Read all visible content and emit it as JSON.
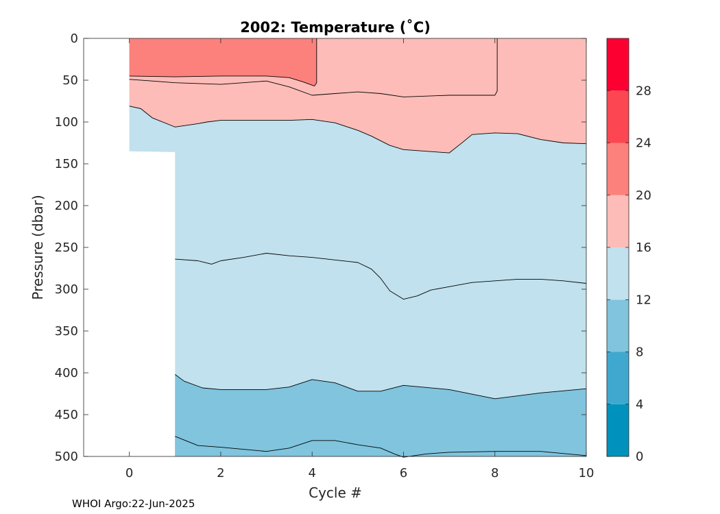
{
  "chart_data": {
    "type": "heatmap",
    "title": "2002:  Temperature (˚C)",
    "xlabel": "Cycle #",
    "ylabel": "Pressure (dbar)",
    "xlim": [
      -1,
      10
    ],
    "ylim": [
      0,
      500
    ],
    "y_reversed": true,
    "xticks": [
      0,
      2,
      4,
      6,
      8,
      10
    ],
    "yticks": [
      0,
      50,
      100,
      150,
      200,
      250,
      300,
      350,
      400,
      450,
      500
    ],
    "colorbar": {
      "limits": [
        0,
        32
      ],
      "ticks": [
        0,
        4,
        8,
        12,
        16,
        20,
        24,
        28
      ],
      "bands": [
        {
          "from": 0,
          "to": 4,
          "color": "#0092bd"
        },
        {
          "from": 4,
          "to": 8,
          "color": "#40a8cf"
        },
        {
          "from": 8,
          "to": 12,
          "color": "#80c4de"
        },
        {
          "from": 12,
          "to": 16,
          "color": "#c0e1ed"
        },
        {
          "from": 16,
          "to": 20,
          "color": "#fdbcb7"
        },
        {
          "from": 20,
          "to": 24,
          "color": "#fc817c"
        },
        {
          "from": 24,
          "to": 28,
          "color": "#fc4651"
        },
        {
          "from": 28,
          "to": 32,
          "color": "#fc0032"
        }
      ]
    },
    "regions": [
      {
        "level": "12-16",
        "color": "#c0e1ed",
        "polygon": [
          [
            0,
            0
          ],
          [
            10,
            0
          ],
          [
            10,
            500
          ],
          [
            1,
            500
          ],
          [
            1,
            136
          ],
          [
            0,
            135
          ]
        ]
      },
      {
        "level": "8-12",
        "color": "#80c4de",
        "polygon": [
          [
            1,
            402
          ],
          [
            1.2,
            410
          ],
          [
            1.6,
            418
          ],
          [
            2,
            420
          ],
          [
            3,
            420
          ],
          [
            3.5,
            417
          ],
          [
            4,
            408
          ],
          [
            4.5,
            412
          ],
          [
            5,
            422
          ],
          [
            5.5,
            422
          ],
          [
            6,
            415
          ],
          [
            7,
            420
          ],
          [
            8,
            431
          ],
          [
            9,
            424
          ],
          [
            10,
            419
          ],
          [
            10,
            500
          ],
          [
            1,
            500
          ]
        ]
      },
      {
        "level": "8-12",
        "color": "#80c4de",
        "polygon": [
          [
            1,
            476
          ],
          [
            1.5,
            487
          ],
          [
            2,
            489
          ],
          [
            3,
            494
          ],
          [
            3.5,
            490
          ],
          [
            4,
            481
          ],
          [
            4.5,
            481
          ],
          [
            5,
            486
          ],
          [
            5.5,
            490
          ],
          [
            5.8,
            497
          ],
          [
            6,
            501
          ],
          [
            6.5,
            497
          ],
          [
            7,
            495
          ],
          [
            8,
            494
          ],
          [
            9,
            494
          ],
          [
            10,
            499
          ],
          [
            10,
            500
          ],
          [
            1,
            500
          ]
        ]
      },
      {
        "level": "16-20",
        "color": "#fdbcb7",
        "polygon": [
          [
            0,
            0
          ],
          [
            10,
            0
          ],
          [
            10,
            126
          ],
          [
            9.5,
            125
          ],
          [
            9,
            121
          ],
          [
            8.5,
            114
          ],
          [
            8,
            113
          ],
          [
            7.5,
            115
          ],
          [
            7.3,
            124
          ],
          [
            7,
            137
          ],
          [
            6.5,
            135
          ],
          [
            6,
            133
          ],
          [
            5.7,
            128
          ],
          [
            5.3,
            117
          ],
          [
            5,
            110
          ],
          [
            4.5,
            101
          ],
          [
            4,
            97
          ],
          [
            3.5,
            98
          ],
          [
            3,
            98
          ],
          [
            2.5,
            98
          ],
          [
            2,
            98
          ],
          [
            1.7,
            100
          ],
          [
            1.5,
            102
          ],
          [
            1,
            106
          ],
          [
            0.5,
            95
          ],
          [
            0.25,
            84
          ],
          [
            0,
            81
          ]
        ]
      },
      {
        "level": "20-24",
        "color": "#fc817c",
        "polygon": [
          [
            0,
            0
          ],
          [
            4.1,
            0
          ],
          [
            4.1,
            53
          ],
          [
            4.05,
            57
          ],
          [
            4,
            56
          ],
          [
            3.8,
            52
          ],
          [
            3.5,
            47
          ],
          [
            3,
            45
          ],
          [
            2.5,
            45
          ],
          [
            2,
            45
          ],
          [
            1,
            46
          ],
          [
            0,
            45
          ]
        ]
      }
    ],
    "contours": [
      [
        [
          0,
          81
        ],
        [
          0.25,
          84
        ],
        [
          0.5,
          95
        ],
        [
          1,
          106
        ],
        [
          1.5,
          102
        ],
        [
          1.7,
          100
        ],
        [
          2,
          98
        ],
        [
          2.5,
          98
        ],
        [
          3,
          98
        ],
        [
          3.5,
          98
        ],
        [
          4,
          97
        ],
        [
          4.5,
          101
        ],
        [
          5,
          110
        ],
        [
          5.3,
          117
        ],
        [
          5.7,
          128
        ],
        [
          6,
          133
        ],
        [
          6.5,
          135
        ],
        [
          7,
          137
        ],
        [
          7.3,
          124
        ],
        [
          7.5,
          115
        ],
        [
          8,
          113
        ],
        [
          8.5,
          114
        ],
        [
          9,
          121
        ],
        [
          9.5,
          125
        ],
        [
          10,
          126
        ]
      ],
      [
        [
          0,
          49
        ],
        [
          0.5,
          51
        ],
        [
          1,
          53
        ],
        [
          2,
          55
        ],
        [
          3,
          51
        ],
        [
          3.5,
          58
        ],
        [
          4,
          68
        ],
        [
          4.5,
          66
        ],
        [
          5,
          64
        ],
        [
          5.5,
          66
        ],
        [
          6,
          70
        ],
        [
          7,
          68
        ],
        [
          8,
          68
        ]
      ],
      [
        [
          8,
          68
        ],
        [
          8.05,
          63
        ],
        [
          8.05,
          0
        ]
      ],
      [
        [
          0,
          45
        ],
        [
          1,
          46
        ],
        [
          2,
          45
        ],
        [
          2.5,
          45
        ],
        [
          3,
          45
        ],
        [
          3.5,
          47
        ],
        [
          3.8,
          52
        ],
        [
          4,
          56
        ],
        [
          4.05,
          57
        ],
        [
          4.1,
          53
        ],
        [
          4.1,
          0
        ]
      ],
      [
        [
          1,
          264
        ],
        [
          1.5,
          266
        ],
        [
          1.8,
          270
        ],
        [
          2,
          266
        ],
        [
          2.5,
          262
        ],
        [
          3,
          257
        ],
        [
          3.5,
          260
        ],
        [
          4,
          262
        ],
        [
          4.5,
          265
        ],
        [
          5,
          268
        ],
        [
          5.3,
          276
        ],
        [
          5.5,
          287
        ],
        [
          5.7,
          302
        ],
        [
          6,
          312
        ],
        [
          6.3,
          308
        ],
        [
          6.6,
          301
        ],
        [
          7,
          297
        ],
        [
          7.5,
          292
        ],
        [
          8,
          290
        ],
        [
          8.5,
          288
        ],
        [
          9,
          288
        ],
        [
          9.5,
          290
        ],
        [
          10,
          293
        ]
      ],
      [
        [
          1,
          402
        ],
        [
          1.2,
          410
        ],
        [
          1.6,
          418
        ],
        [
          2,
          420
        ],
        [
          3,
          420
        ],
        [
          3.5,
          417
        ],
        [
          4,
          408
        ],
        [
          4.5,
          412
        ],
        [
          5,
          422
        ],
        [
          5.5,
          422
        ],
        [
          6,
          415
        ],
        [
          7,
          420
        ],
        [
          8,
          431
        ],
        [
          9,
          424
        ],
        [
          10,
          419
        ]
      ],
      [
        [
          1,
          476
        ],
        [
          1.5,
          487
        ],
        [
          2,
          489
        ],
        [
          3,
          494
        ],
        [
          3.5,
          490
        ],
        [
          4,
          481
        ],
        [
          4.5,
          481
        ],
        [
          5,
          486
        ],
        [
          5.5,
          490
        ],
        [
          5.8,
          497
        ],
        [
          6,
          501
        ],
        [
          6.5,
          497
        ],
        [
          7,
          495
        ],
        [
          8,
          494
        ],
        [
          9,
          494
        ],
        [
          10,
          499
        ]
      ]
    ],
    "footer": "WHOI Argo:22-Jun-2025"
  }
}
